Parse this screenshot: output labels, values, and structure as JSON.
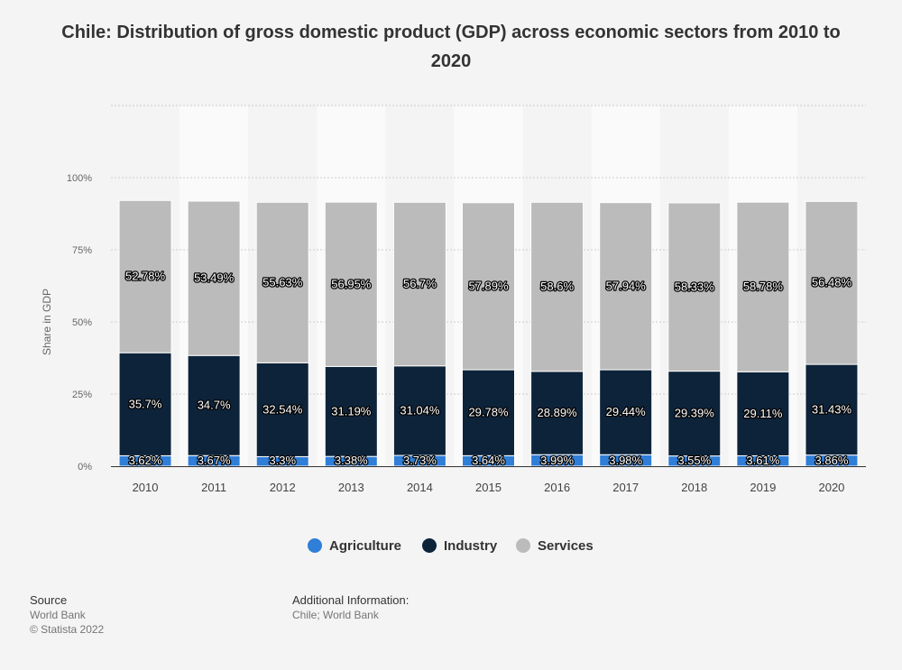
{
  "title": "Chile: Distribution of gross domestic product (GDP) across economic sectors from 2010 to 2020",
  "chart_data": {
    "type": "bar",
    "stacked": true,
    "title": "Chile: Distribution of gross domestic product (GDP) across economic sectors from 2010 to 2020",
    "xlabel": "",
    "ylabel": "Share in GDP",
    "ylim": [
      0,
      125
    ],
    "yticks": [
      "0%",
      "25%",
      "50%",
      "75%",
      "100%"
    ],
    "grid": true,
    "legend_position": "bottom",
    "categories": [
      "2010",
      "2011",
      "2012",
      "2013",
      "2014",
      "2015",
      "2016",
      "2017",
      "2018",
      "2019",
      "2020"
    ],
    "series": [
      {
        "name": "Agriculture",
        "color": "#2f7ed8",
        "values": [
          3.62,
          3.67,
          3.3,
          3.38,
          3.73,
          3.64,
          3.99,
          3.98,
          3.55,
          3.61,
          3.86
        ],
        "labels": [
          "3.62%",
          "3.67%",
          "3.3%",
          "3.38%",
          "3.73%",
          "3.64%",
          "3.99%",
          "3.98%",
          "3.55%",
          "3.61%",
          "3.86%"
        ]
      },
      {
        "name": "Industry",
        "color": "#0d233a",
        "values": [
          35.7,
          34.7,
          32.54,
          31.19,
          31.04,
          29.78,
          28.89,
          29.44,
          29.39,
          29.11,
          31.43
        ],
        "labels": [
          "35.7%",
          "34.7%",
          "32.54%",
          "31.19%",
          "31.04%",
          "29.78%",
          "28.89%",
          "29.44%",
          "29.39%",
          "29.11%",
          "31.43%"
        ]
      },
      {
        "name": "Services",
        "color": "#bbbbbb",
        "values": [
          52.78,
          53.49,
          55.63,
          56.95,
          56.7,
          57.89,
          58.6,
          57.94,
          58.33,
          58.78,
          56.48
        ],
        "labels": [
          "52.78%",
          "53.49%",
          "55.63%",
          "56.95%",
          "56.7%",
          "57.89%",
          "58.6%",
          "57.94%",
          "58.33%",
          "58.78%",
          "56.48%"
        ]
      }
    ]
  },
  "footer": {
    "source_heading": "Source",
    "source_name": "World Bank",
    "copyright": "© Statista 2022",
    "additional_heading": "Additional Information:",
    "additional_text": "Chile; World Bank"
  }
}
